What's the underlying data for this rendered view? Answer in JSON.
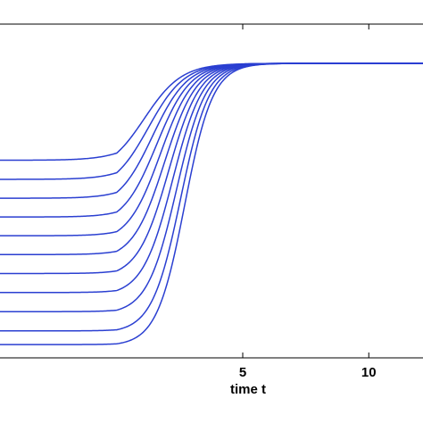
{
  "chart_data": {
    "type": "line",
    "title": "",
    "xlabel": "time t",
    "ylabel": "",
    "xlim": [
      -4.7,
      13.0
    ],
    "ylim": [
      -0.05,
      1.14
    ],
    "xticks": [
      {
        "value": 5,
        "label": "5"
      },
      {
        "value": 10,
        "label": "10"
      }
    ],
    "grid": false,
    "legend": "none",
    "line_color": "#2a3fd1",
    "series": [
      {
        "initial_value": 0.68
      },
      {
        "initial_value": 0.61
      },
      {
        "initial_value": 0.54
      },
      {
        "initial_value": 0.47
      },
      {
        "initial_value": 0.4
      },
      {
        "initial_value": 0.33
      },
      {
        "initial_value": 0.26
      },
      {
        "initial_value": 0.19
      },
      {
        "initial_value": 0.12
      },
      {
        "initial_value": 0.05
      },
      {
        "initial_value": 0.0
      }
    ],
    "steady_value": 1.0
  }
}
